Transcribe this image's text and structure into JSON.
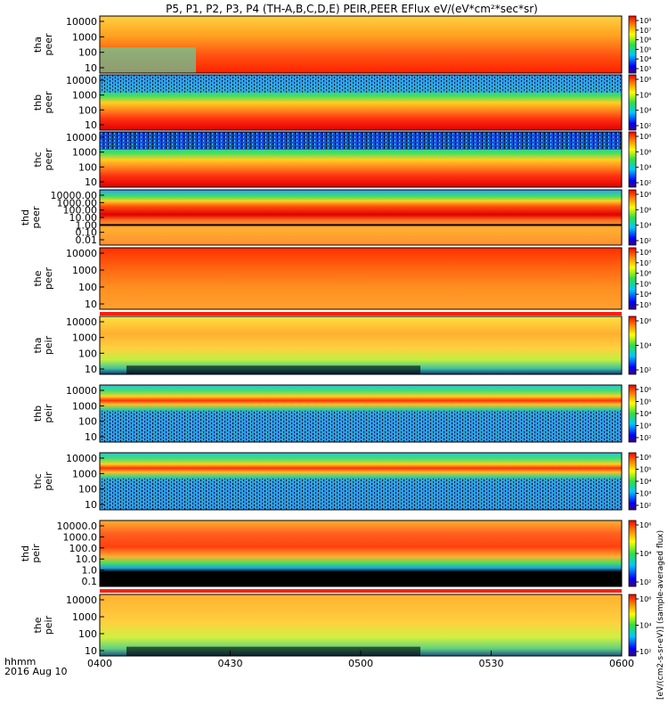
{
  "title": "P5, P1, P2, P3, P4 (TH-A,B,C,D,E) PEIR,PEER EFlux eV/(eV*cm²*sec*sr)",
  "colorbar_title": "[eV/(cm2-s-sr-eV)] (sample-averaged flux)",
  "footer": {
    "label1": "hhmm",
    "label2": "2016 Aug 10"
  },
  "chart_data": {
    "type": "heatmap",
    "xaxis": {
      "label": "hhmm",
      "range": [
        "0400",
        "0600"
      ],
      "ticks": [
        "0400",
        "0430",
        "0500",
        "0530",
        "0600"
      ],
      "date": "2016 Aug 10"
    },
    "panels": [
      {
        "name": "tha peer",
        "ylabel1": "tha",
        "ylabel2": "peer",
        "yticks": [
          "10000",
          "1000",
          "100",
          "10"
        ],
        "cbar_ticks": [
          "10⁸",
          "10⁷",
          "10⁶",
          "10⁵",
          "10⁴",
          "10³"
        ]
      },
      {
        "name": "thb peer",
        "ylabel1": "thb",
        "ylabel2": "peer",
        "yticks": [
          "10000",
          "1000",
          "100",
          "10"
        ],
        "cbar_ticks": [
          "10⁸",
          "10⁶",
          "10⁴",
          "10²"
        ]
      },
      {
        "name": "thc peer",
        "ylabel1": "thc",
        "ylabel2": "peer",
        "yticks": [
          "10000",
          "1000",
          "100",
          "10"
        ],
        "cbar_ticks": [
          "10⁸",
          "10⁶",
          "10⁴",
          "10²"
        ]
      },
      {
        "name": "thd peer",
        "ylabel1": "thd",
        "ylabel2": "peer",
        "yticks": [
          "10000.00",
          "1000.00",
          "100.00",
          "10.00",
          "1.00",
          "0.10",
          "0.01"
        ],
        "cbar_ticks": [
          "10⁸",
          "10⁶",
          "10⁴",
          "10²"
        ]
      },
      {
        "name": "the peer",
        "ylabel1": "the",
        "ylabel2": "peer",
        "yticks": [
          "10000",
          "1000",
          "100",
          "10"
        ],
        "cbar_ticks": [
          "10⁸",
          "10⁷",
          "10⁶",
          "10⁵",
          "10⁴",
          "10³"
        ]
      },
      {
        "name": "tha peir",
        "ylabel1": "tha",
        "ylabel2": "peir",
        "yticks": [
          "10000",
          "1000",
          "100",
          "10"
        ],
        "cbar_ticks": [
          "10⁶",
          "10⁴",
          "10²"
        ]
      },
      {
        "name": "thb peir",
        "ylabel1": "thb",
        "ylabel2": "peir",
        "yticks": [
          "10000",
          "1000",
          "100",
          "10"
        ],
        "cbar_ticks": [
          "10⁶",
          "10⁵",
          "10⁴",
          "10³",
          "10²"
        ]
      },
      {
        "name": "thc peir",
        "ylabel1": "thc",
        "ylabel2": "peir",
        "yticks": [
          "10000",
          "1000",
          "100",
          "10"
        ],
        "cbar_ticks": [
          "10⁶",
          "10⁵",
          "10⁴",
          "10³",
          "10²"
        ]
      },
      {
        "name": "thd peir",
        "ylabel1": "thd",
        "ylabel2": "peir",
        "yticks": [
          "10000.0",
          "1000.0",
          "100.0",
          "10.0",
          "1.0",
          "0.1"
        ],
        "cbar_ticks": [
          "10⁶",
          "10⁴",
          "10²"
        ]
      },
      {
        "name": "the peir",
        "ylabel1": "the",
        "ylabel2": "peir",
        "yticks": [
          "10000",
          "1000",
          "100",
          "10"
        ],
        "cbar_ticks": [
          "10⁶",
          "10⁴",
          "10²"
        ]
      }
    ]
  }
}
